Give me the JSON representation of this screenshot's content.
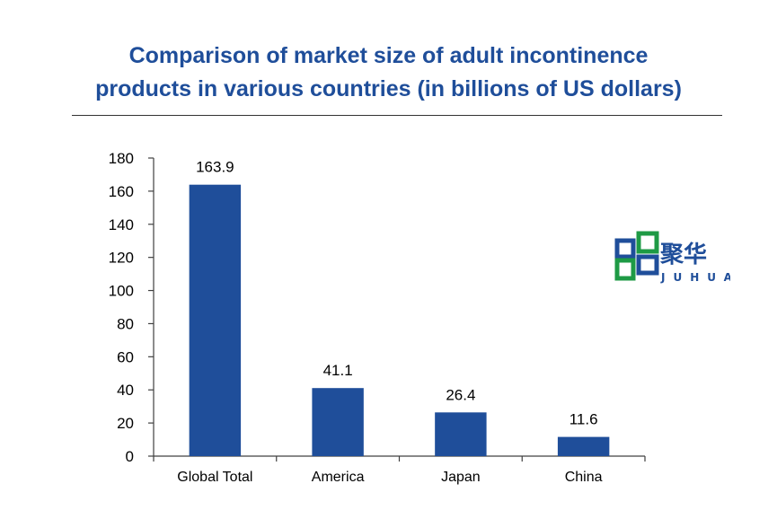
{
  "title_line1": "Comparison of market size of adult incontinence",
  "title_line2": "products in various countries (in billions of US dollars)",
  "logo": {
    "name_cn": "聚华",
    "name_en": "JUHUA",
    "color_blue": "#1F4E9A",
    "color_green": "#1E9A45"
  },
  "chart_data": {
    "type": "bar",
    "title": "Comparison of market size of adult incontinence products in various countries (in billions of US dollars)",
    "categories": [
      "Global Total",
      "America",
      "Japan",
      "China"
    ],
    "values": [
      163.9,
      41.1,
      26.4,
      11.6
    ],
    "data_labels": [
      "163.9",
      "41.1",
      "26.4",
      "11.6"
    ],
    "ylim": [
      0,
      180
    ],
    "yticks": [
      0,
      20,
      40,
      60,
      80,
      100,
      120,
      140,
      160,
      180
    ],
    "xlabel": "",
    "ylabel": "",
    "grid": false,
    "legend": "none",
    "bar_color": "#1F4E9A"
  }
}
